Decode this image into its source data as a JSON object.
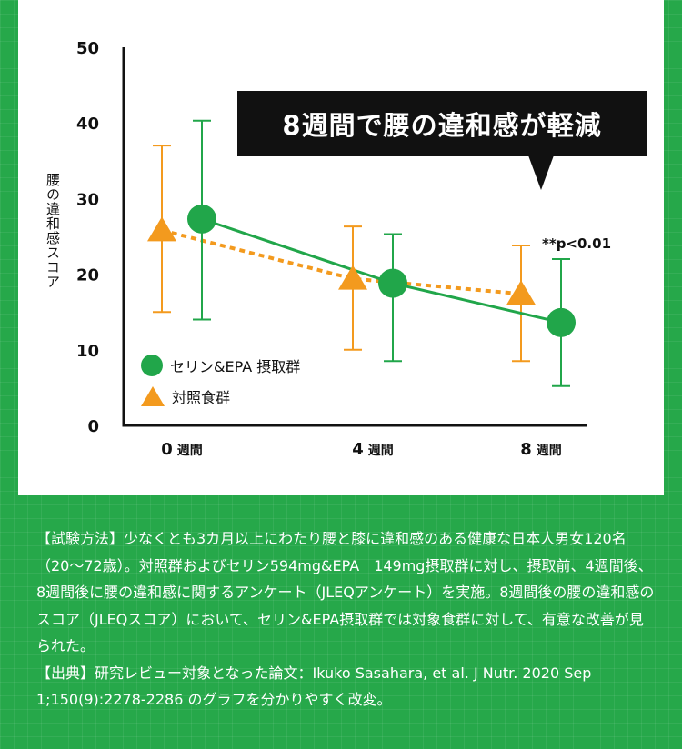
{
  "chart_data": {
    "type": "line",
    "categories": [
      "0",
      "4",
      "8"
    ],
    "category_suffix": "週間",
    "ylabel": "腰の違和感スコア",
    "yticks": [
      0,
      10,
      20,
      30,
      40,
      50
    ],
    "ylim": [
      0,
      50
    ],
    "series": [
      {
        "name": "セリン&EPA 摂取群",
        "color": "#21a64a",
        "values": [
          27.3,
          18.8,
          13.6
        ],
        "err_low": [
          14,
          8.5,
          5.2
        ],
        "err_high": [
          40.3,
          25.3,
          22
        ],
        "line_style": "solid",
        "marker": "circle"
      },
      {
        "name": "対照食群",
        "color": "#f39a1e",
        "values": [
          25.8,
          19.4,
          17.4
        ],
        "err_low": [
          15,
          10,
          8.5
        ],
        "err_high": [
          37,
          26.3,
          23.8
        ],
        "line_style": "dotted",
        "marker": "triangle"
      }
    ],
    "annotation": "**p<0.01",
    "callout": "8週間で腰の違和感が軽減",
    "legend_position": "bottom-left"
  },
  "note": {
    "method": "【試験方法】少なくとも3カ月以上にわたり腰と膝に違和感のある健康な日本人男女120名（20〜72歳）。対照群およびセリン594mg&EPA　149mg摂取群に対し、摂取前、4週間後、8週間後に腰の違和感に関するアンケート（JLEQアンケート）を実施。8週間後の腰の違和感のスコア（JLEQスコア）において、セリン&EPA摂取群では対象食群に対して、有意な改善が見られた。",
    "source": "【出典】研究レビュー対象となった論文：Ikuko Sasahara, et al. J Nutr. 2020 Sep 1;150(9):2278-2286 のグラフを分かりやすく改変。"
  }
}
